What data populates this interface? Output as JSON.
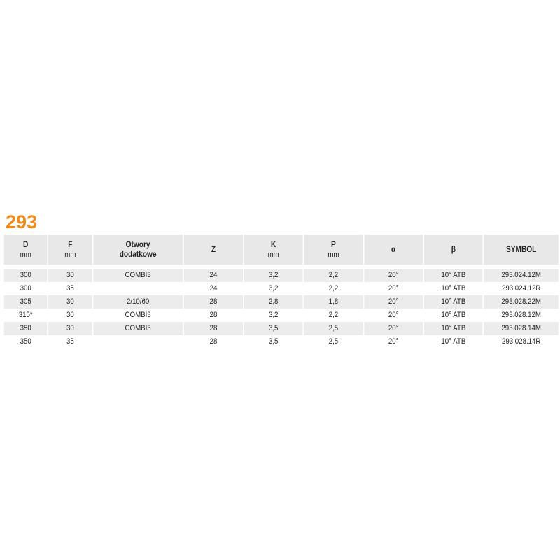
{
  "title": "293",
  "headers": [
    {
      "label": "D",
      "unit": "mm"
    },
    {
      "label": "F",
      "unit": "mm"
    },
    {
      "label": "Otwory dodatkowe",
      "unit": ""
    },
    {
      "label": "Z",
      "unit": ""
    },
    {
      "label": "K",
      "unit": "mm"
    },
    {
      "label": "P",
      "unit": "mm"
    },
    {
      "label": "α",
      "unit": ""
    },
    {
      "label": "β",
      "unit": ""
    },
    {
      "label": "SYMBOL",
      "unit": ""
    }
  ],
  "rows": [
    [
      "300",
      "30",
      "COMBI3",
      "24",
      "3,2",
      "2,2",
      "20°",
      "10° ATB",
      "293.024.12M"
    ],
    [
      "300",
      "35",
      "",
      "24",
      "3,2",
      "2,2",
      "20°",
      "10° ATB",
      "293.024.12R"
    ],
    [
      "305",
      "30",
      "2/10/60",
      "28",
      "2,8",
      "1,8",
      "20°",
      "10° ATB",
      "293.028.22M"
    ],
    [
      "315*",
      "30",
      "COMBI3",
      "28",
      "3,2",
      "2,2",
      "20°",
      "10° ATB",
      "293.028.12M"
    ],
    [
      "350",
      "30",
      "COMBI3",
      "28",
      "3,5",
      "2,5",
      "20°",
      "10° ATB",
      "293.028.14M"
    ],
    [
      "350",
      "35",
      "",
      "28",
      "3,5",
      "2,5",
      "20°",
      "10° ATB",
      "293.028.14R"
    ]
  ],
  "colors": {
    "title": "#f28a1a",
    "stripe": "#ececec"
  }
}
